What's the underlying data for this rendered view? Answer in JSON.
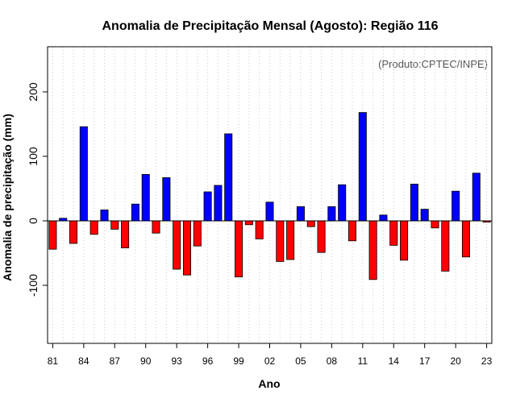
{
  "chart_data": {
    "type": "bar",
    "title": "Anomalia de Precipitação Mensal (Agosto): Região 116",
    "xlabel": "Ano",
    "ylabel": "Anomalia de precipitação (mm)",
    "credit": "(Produto:CPTEC/INPE)",
    "ylim": [
      -190,
      270
    ],
    "yticks": [
      -100,
      0,
      100,
      200
    ],
    "ytick_labels": [
      "-100",
      "0",
      "100",
      "200"
    ],
    "xtick_labels": [
      "81",
      "84",
      "87",
      "90",
      "93",
      "96",
      "99",
      "02",
      "05",
      "08",
      "11",
      "14",
      "17",
      "20",
      "23"
    ],
    "categories": [
      "1981",
      "1982",
      "1983",
      "1984",
      "1985",
      "1986",
      "1987",
      "1988",
      "1989",
      "1990",
      "1991",
      "1992",
      "1993",
      "1994",
      "1995",
      "1996",
      "1997",
      "1998",
      "1999",
      "2000",
      "2001",
      "2002",
      "2003",
      "2004",
      "2005",
      "2006",
      "2007",
      "2008",
      "2009",
      "2010",
      "2011",
      "2012",
      "2013",
      "2014",
      "2015",
      "2016",
      "2017",
      "2018",
      "2019",
      "2020",
      "2021",
      "2022",
      "2023"
    ],
    "values": [
      -44,
      4,
      -35,
      146,
      -21,
      17,
      -13,
      -42,
      26,
      72,
      -19,
      67,
      -75,
      -84,
      -39,
      45,
      55,
      135,
      -87,
      -6,
      -28,
      29,
      -63,
      -60,
      22,
      -9,
      -49,
      22,
      56,
      -31,
      168,
      -91,
      9,
      -38,
      -61,
      57,
      18,
      -11,
      -78,
      46,
      -56,
      74,
      -2
    ],
    "colors": {
      "positive": "#0000ff",
      "negative": "#ff0000",
      "grid": "#cccccc",
      "frame": "#000000"
    }
  }
}
